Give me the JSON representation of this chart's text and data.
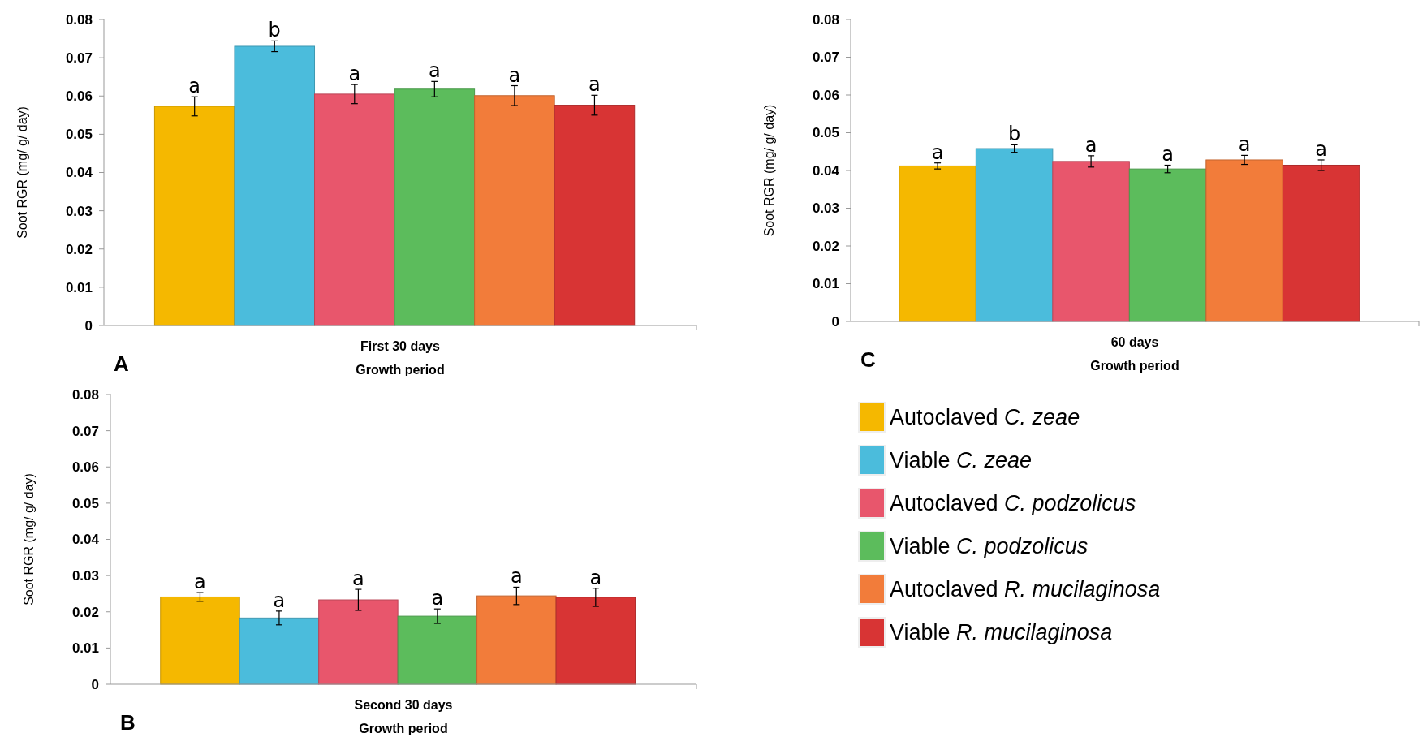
{
  "chart_data": [
    {
      "type": "bar",
      "title": "A",
      "categories": [
        "First 30 days"
      ],
      "xlabel": "Growth period",
      "ylabel": "Soot RGR (mg/ g/ day)",
      "ylim": [
        0,
        0.08
      ],
      "yticks": [
        0,
        0.01,
        0.02,
        0.03,
        0.04,
        0.05,
        0.06,
        0.07,
        0.08
      ],
      "grid": false,
      "series": [
        {
          "color": "#f5b800",
          "values": [
            0.0573
          ],
          "errors": [
            0.0025
          ],
          "value_labels": [
            "a"
          ]
        },
        {
          "color": "#4bbcdc",
          "values": [
            0.073
          ],
          "errors": [
            0.0014
          ],
          "value_labels": [
            "b"
          ]
        },
        {
          "color": "#e8566c",
          "values": [
            0.0605
          ],
          "errors": [
            0.0025
          ],
          "value_labels": [
            "a"
          ]
        },
        {
          "color": "#5cbc5c",
          "values": [
            0.0618
          ],
          "errors": [
            0.002
          ],
          "value_labels": [
            "a"
          ]
        },
        {
          "color": "#f27c3a",
          "values": [
            0.0601
          ],
          "errors": [
            0.0026
          ],
          "value_labels": [
            "a"
          ]
        },
        {
          "color": "#d83434",
          "values": [
            0.0576
          ],
          "errors": [
            0.0026
          ],
          "value_labels": [
            "a"
          ]
        }
      ]
    },
    {
      "type": "bar",
      "title": "C",
      "categories": [
        "60 days"
      ],
      "xlabel": "Growth period",
      "ylabel": "Soot RGR (mg/ g/ day)",
      "ylim": [
        0,
        0.08
      ],
      "yticks": [
        0,
        0.01,
        0.02,
        0.03,
        0.04,
        0.05,
        0.06,
        0.07,
        0.08
      ],
      "grid": false,
      "legend": "bottom",
      "series": [
        {
          "name": "Autoclaved C. zeae",
          "color": "#f5b800",
          "values": [
            0.0412
          ],
          "errors": [
            0.0008
          ],
          "value_labels": [
            "a"
          ]
        },
        {
          "name": "Viable C. zeae",
          "color": "#4bbcdc",
          "values": [
            0.0458
          ],
          "errors": [
            0.001
          ],
          "value_labels": [
            "b"
          ]
        },
        {
          "name": "Autoclaved C. podzolicus",
          "color": "#e8566c",
          "values": [
            0.0424
          ],
          "errors": [
            0.0015
          ],
          "value_labels": [
            "a"
          ]
        },
        {
          "name": "Viable C. podzolicus",
          "color": "#5cbc5c",
          "values": [
            0.0404
          ],
          "errors": [
            0.001
          ],
          "value_labels": [
            "a"
          ]
        },
        {
          "name": "Autoclaved R. mucilaginosa",
          "color": "#f27c3a",
          "values": [
            0.0428
          ],
          "errors": [
            0.0012
          ],
          "value_labels": [
            "a"
          ]
        },
        {
          "name": "Viable R. mucilaginosa",
          "color": "#d83434",
          "values": [
            0.0414
          ],
          "errors": [
            0.0014
          ],
          "value_labels": [
            "a"
          ]
        }
      ]
    },
    {
      "type": "bar",
      "title": "B",
      "categories": [
        "Second 30 days"
      ],
      "xlabel": "Growth period",
      "ylabel": "Soot RGR (mg/ g/ day)",
      "ylim": [
        0,
        0.08
      ],
      "yticks": [
        0,
        0.01,
        0.02,
        0.03,
        0.04,
        0.05,
        0.06,
        0.07,
        0.08
      ],
      "grid": false,
      "series": [
        {
          "color": "#f5b800",
          "values": [
            0.0241
          ],
          "errors": [
            0.0012
          ],
          "value_labels": [
            "a"
          ]
        },
        {
          "color": "#4bbcdc",
          "values": [
            0.0183
          ],
          "errors": [
            0.0019
          ],
          "value_labels": [
            "a"
          ]
        },
        {
          "color": "#e8566c",
          "values": [
            0.0233
          ],
          "errors": [
            0.0029
          ],
          "value_labels": [
            "a"
          ]
        },
        {
          "color": "#5cbc5c",
          "values": [
            0.0188
          ],
          "errors": [
            0.002
          ],
          "value_labels": [
            "a"
          ]
        },
        {
          "color": "#f27c3a",
          "values": [
            0.0244
          ],
          "errors": [
            0.0024
          ],
          "value_labels": [
            "a"
          ]
        },
        {
          "color": "#d83434",
          "values": [
            0.024
          ],
          "errors": [
            0.0025
          ],
          "value_labels": [
            "a"
          ]
        }
      ]
    }
  ]
}
